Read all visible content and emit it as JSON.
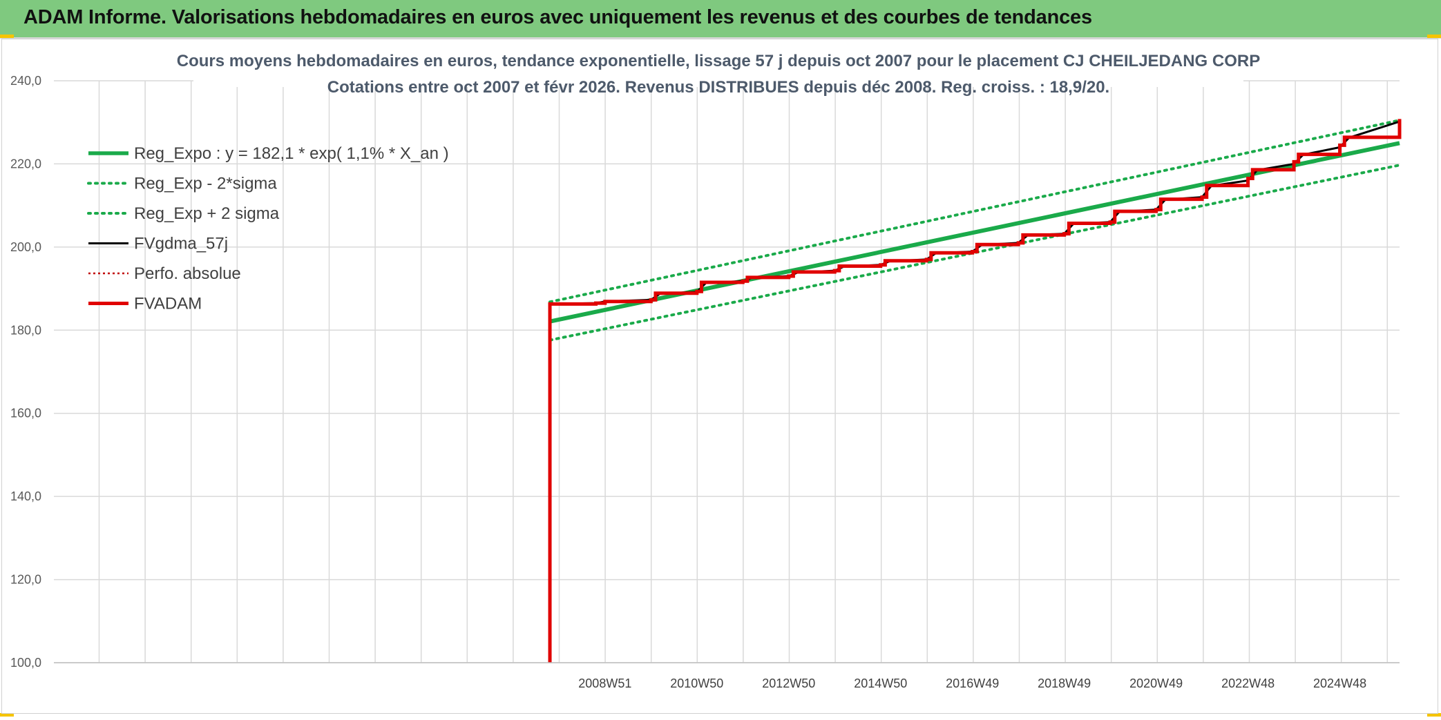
{
  "banner": {
    "title": "ADAM Informe. Valorisations hebdomadaires en euros avec uniquement les revenus et des courbes de tendances"
  },
  "colors": {
    "banner_bg": "#7fc97f",
    "reg_expo": "#1aaa4a",
    "sigma": "#1aaa4a",
    "fvgdma": "#000000",
    "perfo": "#c00000",
    "fvadam": "#e00000",
    "grid": "#d9d9d9"
  },
  "chart_data": {
    "type": "line",
    "title": [
      "Cours moyens hebdomadaires en euros, tendance exponentielle, lissage 57 j depuis oct 2007 pour le placement CJ CHEILJEDANG CORP",
      "Cotations entre oct 2007 et févr 2026. Revenus DISTRIBUES depuis déc 2008. Reg. croiss. : 18,9/20."
    ],
    "xlabel": "",
    "ylabel": "",
    "ylim": [
      100,
      240
    ],
    "xlim": [
      1997.0,
      2026.3
    ],
    "yticks": [
      "100,0",
      "120,0",
      "140,0",
      "160,0",
      "180,0",
      "200,0",
      "220,0",
      "240,0"
    ],
    "ytick_values": [
      100,
      120,
      140,
      160,
      180,
      200,
      220,
      240
    ],
    "xticks": [
      {
        "label": "2008W51",
        "x": 2009.0
      },
      {
        "label": "2010W50",
        "x": 2011.0
      },
      {
        "label": "2012W50",
        "x": 2013.0
      },
      {
        "label": "2014W50",
        "x": 2015.0
      },
      {
        "label": "2016W49",
        "x": 2017.0
      },
      {
        "label": "2018W49",
        "x": 2019.0
      },
      {
        "label": "2020W49",
        "x": 2021.0
      },
      {
        "label": "2022W48",
        "x": 2023.0
      },
      {
        "label": "2024W48",
        "x": 2025.0
      }
    ],
    "grid": true,
    "legend_position": "top-left",
    "series": [
      {
        "name": "Reg_Expo : y = 182,1 * exp( 1,1% *  X_an )",
        "style": "solid-thick",
        "x": [
          2007.8,
          2026.3
        ],
        "y": [
          182.1,
          225.0
        ]
      },
      {
        "name": "Reg_Exp - 2*sigma",
        "style": "dotted",
        "x": [
          2007.8,
          2026.3
        ],
        "y": [
          177.6,
          219.7
        ]
      },
      {
        "name": "Reg_Exp + 2 sigma",
        "style": "dotted",
        "x": [
          2007.8,
          2026.3
        ],
        "y": [
          186.8,
          230.5
        ]
      },
      {
        "name": "FVgdma_57j",
        "style": "solid",
        "x": [
          2007.8,
          2008.8,
          2009.0,
          2010.0,
          2010.2,
          2011.0,
          2011.2,
          2012.0,
          2012.2,
          2013.0,
          2013.2,
          2014.0,
          2014.2,
          2015.0,
          2015.2,
          2016.0,
          2016.2,
          2017.0,
          2017.2,
          2018.0,
          2018.2,
          2019.0,
          2019.2,
          2020.0,
          2020.2,
          2021.0,
          2021.2,
          2022.0,
          2022.2,
          2023.0,
          2023.2,
          2024.0,
          2024.2,
          2025.0,
          2025.2,
          2026.3
        ],
        "y": [
          186.3,
          186.5,
          186.9,
          187.3,
          188.8,
          189.2,
          191.4,
          191.8,
          192.6,
          193.0,
          193.9,
          194.3,
          195.3,
          195.7,
          196.6,
          197.0,
          198.5,
          198.9,
          200.5,
          201.0,
          202.8,
          203.2,
          205.6,
          206.0,
          208.5,
          209.0,
          211.4,
          212.0,
          214.7,
          216.0,
          218.5,
          220.0,
          222.2,
          224.0,
          226.3,
          230.2
        ]
      },
      {
        "name": "Perfo. absolue",
        "style": "dotted-red",
        "x": [],
        "y": []
      },
      {
        "name": "FVADAM",
        "style": "step-thick",
        "x": [
          2007.8,
          2007.8,
          2008.8,
          2009.0,
          2010.0,
          2010.1,
          2011.0,
          2011.1,
          2012.0,
          2012.1,
          2013.0,
          2013.1,
          2014.0,
          2014.1,
          2015.0,
          2015.1,
          2016.0,
          2016.1,
          2017.0,
          2017.1,
          2018.0,
          2018.1,
          2019.0,
          2019.1,
          2020.0,
          2020.1,
          2021.0,
          2021.1,
          2022.0,
          2022.1,
          2023.0,
          2023.1,
          2024.0,
          2024.1,
          2025.0,
          2025.1,
          2026.3
        ],
        "y": [
          100.0,
          186.3,
          186.5,
          186.9,
          187.3,
          188.9,
          189.3,
          191.5,
          191.8,
          192.7,
          193.0,
          194.0,
          194.3,
          195.4,
          195.7,
          196.7,
          197.0,
          198.6,
          198.9,
          200.6,
          201.0,
          202.9,
          203.2,
          205.7,
          206.0,
          208.6,
          209.0,
          211.5,
          212.0,
          214.8,
          216.5,
          218.6,
          220.5,
          222.3,
          224.5,
          226.4,
          230.8
        ]
      }
    ]
  }
}
